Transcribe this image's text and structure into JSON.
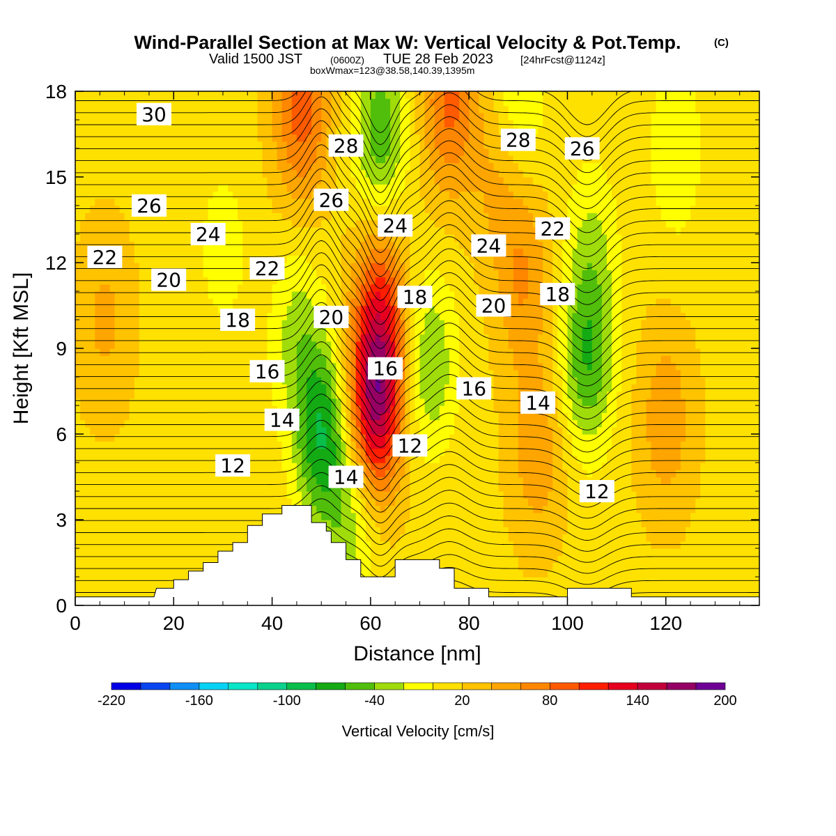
{
  "title": {
    "main": "Wind-Parallel Section at Max W: Vertical Velocity & Pot.Temp.",
    "copyright": "(C)",
    "line2_a": "Valid 1500 JST",
    "line2_b": "(0600Z)",
    "line2_c": "TUE 28 Feb 2023",
    "line2_d": "[24hrFcst@1124z]",
    "line3": "boxWmax=123@38.58,140.39,1395m"
  },
  "chart_data": {
    "type": "heatmap",
    "xlabel": "Distance [nm]",
    "ylabel": "Height [Kft MSL]",
    "xlim": [
      0,
      139
    ],
    "ylim": [
      0,
      18
    ],
    "xticks": [
      "0",
      "20",
      "40",
      "60",
      "80",
      "100",
      "120"
    ],
    "yticks": [
      "0",
      "3",
      "6",
      "9",
      "12",
      "15",
      "18"
    ],
    "colorbar": {
      "label": "Vertical Velocity [cm/s]",
      "tick_labels": [
        "-220",
        "-160",
        "-100",
        "-40",
        "20",
        "80",
        "140",
        "200"
      ],
      "levels": [
        -220,
        -200,
        -180,
        -160,
        -140,
        -120,
        -100,
        -80,
        -60,
        -40,
        -20,
        0,
        20,
        40,
        60,
        80,
        100,
        120,
        140,
        160,
        180,
        200
      ],
      "colors": [
        "#0000e6",
        "#0a46f0",
        "#0f8ff5",
        "#05d2f5",
        "#0ae6c8",
        "#0ad28c",
        "#0abe4b",
        "#14aa14",
        "#50be0a",
        "#a0dc0a",
        "#ffff00",
        "#ffe100",
        "#ffc300",
        "#ffa500",
        "#ff8700",
        "#ff5a00",
        "#ff1e00",
        "#e6001e",
        "#c3003c",
        "#960064",
        "#6e0096"
      ]
    },
    "background_w_cms": 15,
    "w_features": [
      {
        "x": 61,
        "z": 7.0,
        "w": 140
      },
      {
        "x": 62,
        "z": 10.5,
        "w": 80
      },
      {
        "x": 46,
        "z": 17.3,
        "w": 75
      },
      {
        "x": 76,
        "z": 17.6,
        "w": 70
      },
      {
        "x": 91,
        "z": 11.5,
        "w": 45
      },
      {
        "x": 94,
        "z": 5.5,
        "w": 40
      },
      {
        "x": 120,
        "z": 6.5,
        "w": 40
      },
      {
        "x": 86,
        "z": 15.2,
        "w": 30
      },
      {
        "x": 6,
        "z": 10,
        "w": 30
      },
      {
        "x": 50,
        "z": 6.0,
        "w": -90
      },
      {
        "x": 45,
        "z": 9.5,
        "w": -40
      },
      {
        "x": 72,
        "z": 8.5,
        "w": -55
      },
      {
        "x": 104,
        "z": 8.5,
        "w": -70
      },
      {
        "x": 105,
        "z": 12.5,
        "w": -35
      },
      {
        "x": 62,
        "z": 16.5,
        "w": -70
      },
      {
        "x": 90,
        "z": 17.8,
        "w": -40
      },
      {
        "x": 122,
        "z": 16.0,
        "w": -35
      },
      {
        "x": 30,
        "z": 12.5,
        "w": -25
      },
      {
        "x": 56,
        "z": 2.8,
        "w": -45
      }
    ],
    "theta_contour_interval_c": 1,
    "theta_contour_labels": [
      {
        "text": "12",
        "x": 32,
        "z": 4.9
      },
      {
        "text": "14",
        "x": 42,
        "z": 6.5
      },
      {
        "text": "16",
        "x": 39,
        "z": 8.2
      },
      {
        "text": "18",
        "x": 33,
        "z": 10.0
      },
      {
        "text": "20",
        "x": 19,
        "z": 11.4
      },
      {
        "text": "22",
        "x": 6,
        "z": 12.2
      },
      {
        "text": "24",
        "x": 27,
        "z": 13.0
      },
      {
        "text": "26",
        "x": 15,
        "z": 14.0
      },
      {
        "text": "30",
        "x": 16,
        "z": 17.2
      },
      {
        "text": "22",
        "x": 39,
        "z": 11.8
      },
      {
        "text": "20",
        "x": 52,
        "z": 10.1
      },
      {
        "text": "26",
        "x": 52,
        "z": 14.2
      },
      {
        "text": "28",
        "x": 55,
        "z": 16.1
      },
      {
        "text": "24",
        "x": 65,
        "z": 13.3
      },
      {
        "text": "18",
        "x": 69,
        "z": 10.8
      },
      {
        "text": "16",
        "x": 63,
        "z": 8.3
      },
      {
        "text": "12",
        "x": 68,
        "z": 5.6
      },
      {
        "text": "14",
        "x": 55,
        "z": 4.5
      },
      {
        "text": "16",
        "x": 81,
        "z": 7.6
      },
      {
        "text": "20",
        "x": 85,
        "z": 10.5
      },
      {
        "text": "24",
        "x": 84,
        "z": 12.6
      },
      {
        "text": "28",
        "x": 90,
        "z": 16.3
      },
      {
        "text": "26",
        "x": 103,
        "z": 16.0
      },
      {
        "text": "22",
        "x": 97,
        "z": 13.2
      },
      {
        "text": "18",
        "x": 98,
        "z": 10.9
      },
      {
        "text": "14",
        "x": 94,
        "z": 7.1
      },
      {
        "text": "12",
        "x": 106,
        "z": 4.0
      }
    ],
    "terrain_kft": [
      [
        0,
        0.3
      ],
      [
        16,
        0.3
      ],
      [
        16.5,
        0.6
      ],
      [
        20,
        0.6
      ],
      [
        20,
        0.9
      ],
      [
        23,
        0.9
      ],
      [
        23,
        1.2
      ],
      [
        26,
        1.2
      ],
      [
        26,
        1.5
      ],
      [
        29,
        1.5
      ],
      [
        29,
        1.9
      ],
      [
        32,
        1.9
      ],
      [
        32,
        2.2
      ],
      [
        35,
        2.2
      ],
      [
        35,
        2.8
      ],
      [
        38,
        2.8
      ],
      [
        38,
        3.2
      ],
      [
        42,
        3.2
      ],
      [
        42,
        3.5
      ],
      [
        48,
        3.5
      ],
      [
        48,
        2.9
      ],
      [
        51,
        2.9
      ],
      [
        51,
        2.6
      ],
      [
        52,
        2.6
      ],
      [
        52,
        2.2
      ],
      [
        55,
        2.2
      ],
      [
        55,
        1.6
      ],
      [
        58,
        1.6
      ],
      [
        58,
        1.0
      ],
      [
        65,
        1.0
      ],
      [
        65,
        1.6
      ],
      [
        74,
        1.6
      ],
      [
        74,
        1.3
      ],
      [
        77,
        1.3
      ],
      [
        77,
        0.6
      ],
      [
        84,
        0.6
      ],
      [
        84,
        0.3
      ],
      [
        100,
        0.3
      ],
      [
        100,
        0.6
      ],
      [
        113,
        0.6
      ],
      [
        113,
        0.3
      ],
      [
        139,
        0.3
      ]
    ]
  }
}
